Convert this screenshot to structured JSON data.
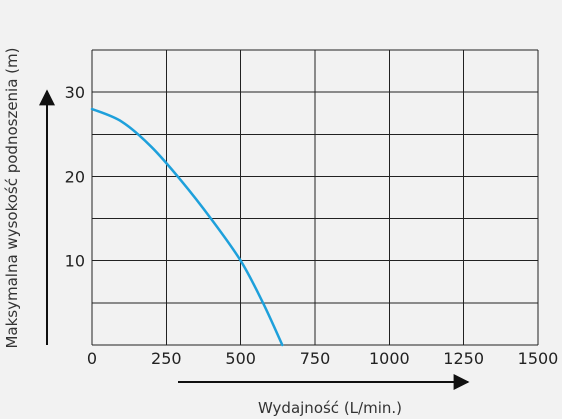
{
  "chart_data": {
    "type": "line",
    "xlabel": "Wydajność (L/min.)",
    "ylabel": "Maksymalna wysokość podnoszenia (m)",
    "xlim": [
      0,
      1500
    ],
    "ylim": [
      0,
      35
    ],
    "x_ticks": [
      0,
      250,
      500,
      750,
      1000,
      1250,
      1500
    ],
    "y_ticks": [
      10,
      20,
      30
    ],
    "grid": true,
    "colors": {
      "series": "#1ea0db",
      "grid": "#222222",
      "background": "#f2f2f2"
    },
    "series": [
      {
        "values": [
          {
            "x": 0,
            "y": 28
          },
          {
            "x": 100,
            "y": 26.5
          },
          {
            "x": 200,
            "y": 23.5
          },
          {
            "x": 300,
            "y": 19.5
          },
          {
            "x": 400,
            "y": 15
          },
          {
            "x": 500,
            "y": 10
          },
          {
            "x": 575,
            "y": 5
          },
          {
            "x": 640,
            "y": 0
          }
        ]
      }
    ]
  }
}
